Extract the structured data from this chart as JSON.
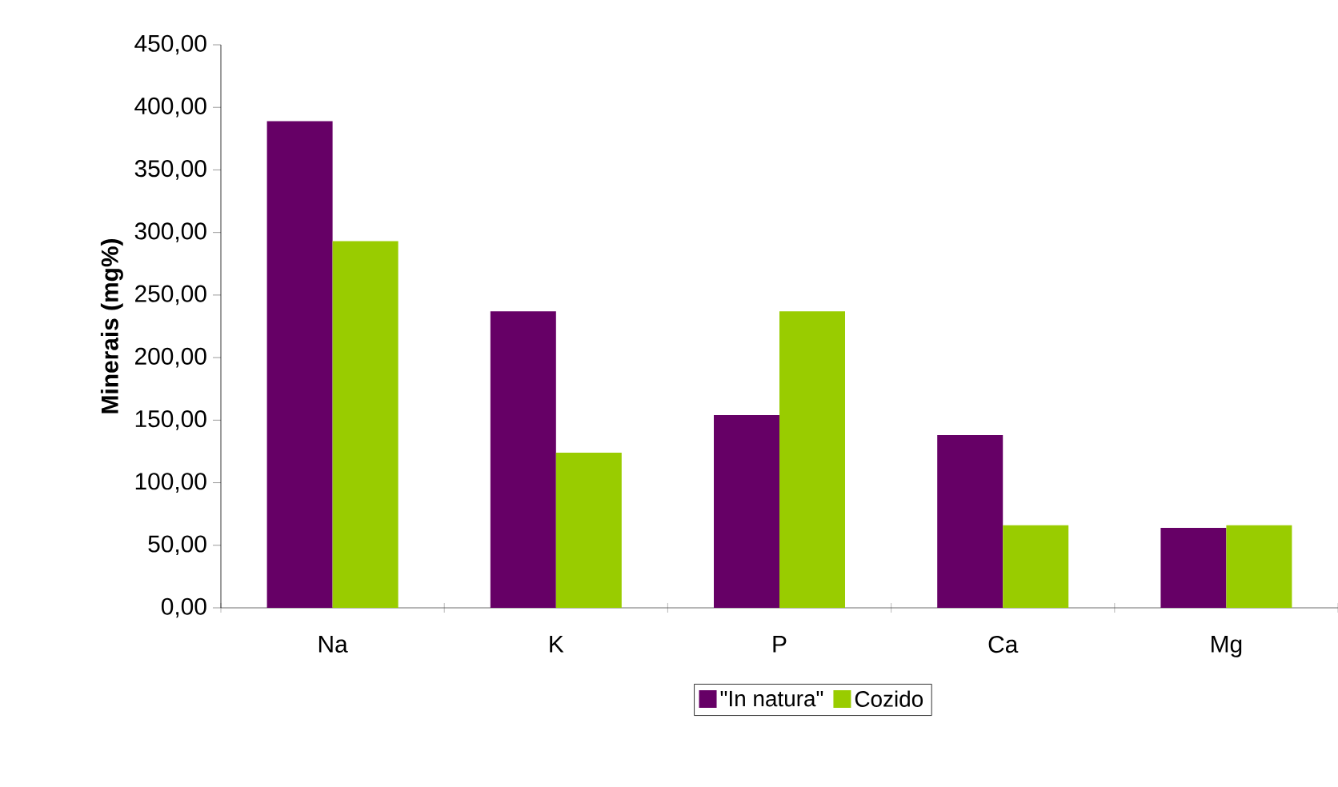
{
  "chart_data": {
    "type": "bar",
    "ylabel": "Minerais (mg%)",
    "categories": [
      "Na",
      "K",
      "P",
      "Ca",
      "Mg"
    ],
    "series": [
      {
        "name": "\"In natura\"",
        "color": "#660066",
        "values": [
          389,
          237,
          154,
          138,
          64
        ]
      },
      {
        "name": "Cozido",
        "color": "#99cc00",
        "values": [
          293,
          124,
          237,
          66,
          66
        ]
      }
    ],
    "ylim": [
      0,
      450
    ],
    "yticks": [
      {
        "value": 0,
        "label": "0,00"
      },
      {
        "value": 50,
        "label": "50,00"
      },
      {
        "value": 100,
        "label": "100,00"
      },
      {
        "value": 150,
        "label": "150,00"
      },
      {
        "value": 200,
        "label": "200,00"
      },
      {
        "value": 250,
        "label": "250,00"
      },
      {
        "value": 300,
        "label": "300,00"
      },
      {
        "value": 350,
        "label": "350,00"
      },
      {
        "value": 400,
        "label": "400,00"
      },
      {
        "value": 450,
        "label": "450,00"
      }
    ],
    "grid": false,
    "legend": "bottom"
  }
}
